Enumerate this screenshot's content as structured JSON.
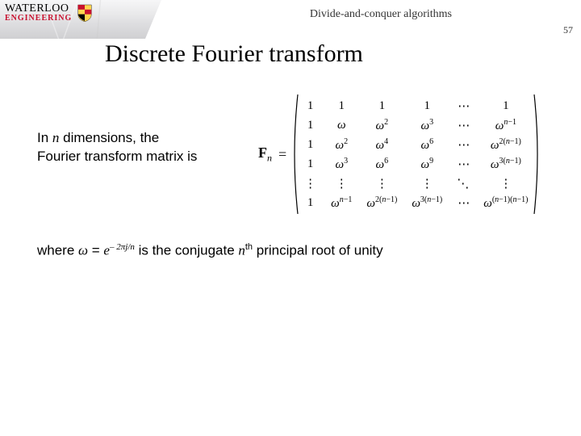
{
  "header": {
    "logo_top": "WATERLOO",
    "logo_bottom": "ENGINEERING",
    "course_title": "Divide-and-conquer algorithms",
    "page_number": "57"
  },
  "slide_title": "Discrete Fourier transform",
  "text": {
    "line1a": "In ",
    "line1_n": "n",
    "line1b": " dimensions, the",
    "line2": "Fourier transform matrix is",
    "where_a": "where ",
    "where_omega": "ω",
    "where_eq": " = ",
    "where_e": "e",
    "where_exp": "– 2πj/n",
    "where_b": " is the conjugate ",
    "where_n": "n",
    "where_th": "th",
    "where_c": " principal root of unity"
  },
  "matrix": {
    "label": "F",
    "label_sub": "n",
    "eq": "=",
    "cells": [
      [
        "1",
        "1",
        "1",
        "1",
        "⋯",
        "1"
      ],
      [
        "1",
        "ω",
        "ω²",
        "ω³",
        "⋯",
        "ω^{n-1}"
      ],
      [
        "1",
        "ω²",
        "ω⁴",
        "ω⁶",
        "⋯",
        "ω^{2(n-1)}"
      ],
      [
        "1",
        "ω³",
        "ω⁶",
        "ω⁹",
        "⋯",
        "ω^{3(n-1)}"
      ],
      [
        "⋮",
        "⋮",
        "⋮",
        "⋮",
        "⋱",
        "⋮"
      ],
      [
        "1",
        "ω^{n-1}",
        "ω^{2(n-1)}",
        "ω^{3(n-1)}",
        "⋯",
        "ω^{(n-1)(n-1)}"
      ]
    ]
  },
  "colors": {
    "accent_red": "#c8102e",
    "text": "#000000",
    "bg": "#ffffff"
  }
}
